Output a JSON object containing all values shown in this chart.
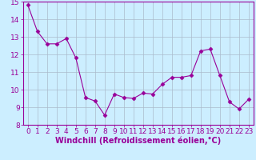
{
  "x": [
    0,
    1,
    2,
    3,
    4,
    5,
    6,
    7,
    8,
    9,
    10,
    11,
    12,
    13,
    14,
    15,
    16,
    17,
    18,
    19,
    20,
    21,
    22,
    23
  ],
  "y": [
    14.8,
    13.3,
    12.6,
    12.6,
    12.9,
    11.8,
    9.55,
    9.35,
    8.55,
    9.75,
    9.55,
    9.5,
    9.8,
    9.75,
    10.3,
    10.7,
    10.7,
    10.8,
    12.2,
    12.3,
    10.8,
    9.3,
    8.9,
    9.45
  ],
  "line_color": "#990099",
  "marker": "D",
  "marker_size": 2.5,
  "bg_color": "#cceeff",
  "grid_color": "#aabbcc",
  "xlabel": "Windchill (Refroidissement éolien,°C)",
  "xlim": [
    -0.5,
    23.5
  ],
  "ylim": [
    8,
    15
  ],
  "yticks": [
    8,
    9,
    10,
    11,
    12,
    13,
    14,
    15
  ],
  "xticks": [
    0,
    1,
    2,
    3,
    4,
    5,
    6,
    7,
    8,
    9,
    10,
    11,
    12,
    13,
    14,
    15,
    16,
    17,
    18,
    19,
    20,
    21,
    22,
    23
  ],
  "xlabel_fontsize": 7.0,
  "tick_fontsize": 6.5,
  "label_color": "#990099",
  "spine_color": "#990099"
}
